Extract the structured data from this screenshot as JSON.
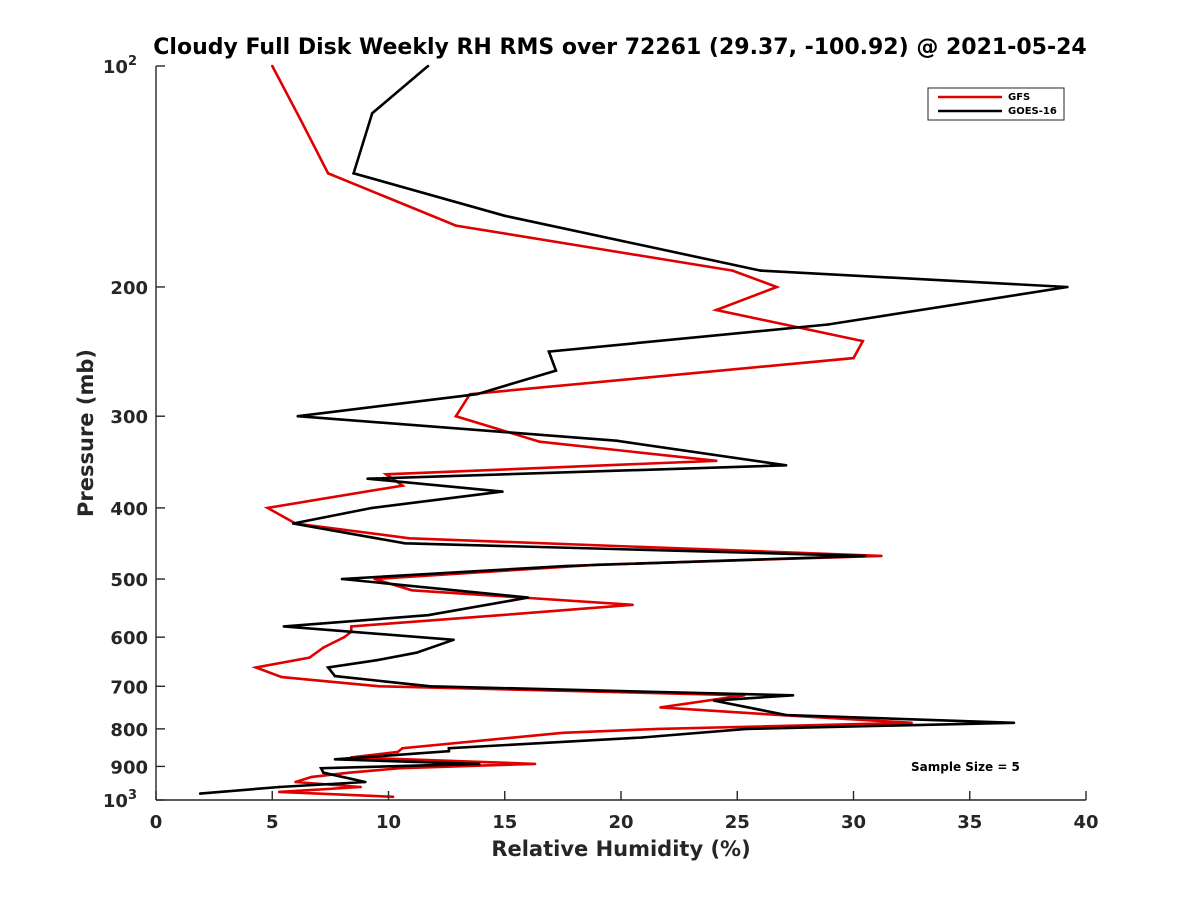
{
  "chart_data": {
    "type": "line",
    "title": "Cloudy Full Disk Weekly RH RMS over 72261 (29.37, -100.92) @ 2021-05-24",
    "xlabel": "Relative Humidity (%)",
    "ylabel": "Pressure (mb)",
    "xlim": [
      0,
      40
    ],
    "ylim": [
      100,
      1000
    ],
    "y_scale": "log",
    "y_reversed": true,
    "x_ticks": [
      "0",
      "5",
      "10",
      "15",
      "20",
      "25",
      "30",
      "35",
      "40"
    ],
    "y_ticks": [
      {
        "value": 100,
        "base": "10",
        "exp": "2"
      },
      {
        "value": 200,
        "label": "200"
      },
      {
        "value": 300,
        "label": "300"
      },
      {
        "value": 400,
        "label": "400"
      },
      {
        "value": 500,
        "label": "500"
      },
      {
        "value": 600,
        "label": "600"
      },
      {
        "value": 700,
        "label": "700"
      },
      {
        "value": 800,
        "label": "800"
      },
      {
        "value": 900,
        "label": "900"
      },
      {
        "value": 1000,
        "base": "10",
        "exp": "3"
      }
    ],
    "grid": false,
    "legend_position": "top-right",
    "annotation": "Sample Size = 5",
    "series": [
      {
        "name": "GFS",
        "color": "#e00000",
        "points": [
          [
            5.0,
            100
          ],
          [
            6.2,
            118
          ],
          [
            7.4,
            140
          ],
          [
            12.9,
            165
          ],
          [
            24.8,
            190
          ],
          [
            26.7,
            200
          ],
          [
            24.1,
            215
          ],
          [
            30.4,
            237
          ],
          [
            30.0,
            250
          ],
          [
            13.5,
            280
          ],
          [
            12.9,
            300
          ],
          [
            16.5,
            325
          ],
          [
            24.1,
            345
          ],
          [
            9.9,
            360
          ],
          [
            10.6,
            373
          ],
          [
            4.8,
            400
          ],
          [
            6.0,
            420
          ],
          [
            10.9,
            440
          ],
          [
            31.2,
            465
          ],
          [
            19.0,
            478
          ],
          [
            9.4,
            500
          ],
          [
            11.0,
            518
          ],
          [
            20.5,
            542
          ],
          [
            14.8,
            560
          ],
          [
            8.4,
            580
          ],
          [
            8.4,
            590
          ],
          [
            8.1,
            600
          ],
          [
            7.2,
            620
          ],
          [
            6.6,
            640
          ],
          [
            4.3,
            660
          ],
          [
            5.4,
            680
          ],
          [
            9.6,
            700
          ],
          [
            25.3,
            720
          ],
          [
            21.7,
            748
          ],
          [
            26.0,
            763
          ],
          [
            32.5,
            785
          ],
          [
            21.6,
            800
          ],
          [
            17.5,
            810
          ],
          [
            10.6,
            850
          ],
          [
            10.4,
            860
          ],
          [
            8.4,
            875
          ],
          [
            16.3,
            893
          ],
          [
            10.5,
            905
          ],
          [
            8.3,
            918
          ],
          [
            6.7,
            930
          ],
          [
            6.0,
            945
          ],
          [
            8.8,
            960
          ],
          [
            5.3,
            975
          ],
          [
            10.2,
            990
          ]
        ]
      },
      {
        "name": "GOES-16",
        "color": "#000000",
        "points": [
          [
            11.7,
            100
          ],
          [
            9.3,
            116
          ],
          [
            8.5,
            140
          ],
          [
            15.0,
            160
          ],
          [
            26.0,
            190
          ],
          [
            39.2,
            200
          ],
          [
            28.9,
            225
          ],
          [
            16.9,
            245
          ],
          [
            17.2,
            260
          ],
          [
            13.8,
            280
          ],
          [
            6.1,
            300
          ],
          [
            19.8,
            324
          ],
          [
            27.1,
            350
          ],
          [
            9.1,
            365
          ],
          [
            14.9,
            380
          ],
          [
            9.3,
            400
          ],
          [
            5.9,
            420
          ],
          [
            10.7,
            447
          ],
          [
            30.5,
            465
          ],
          [
            17.6,
            480
          ],
          [
            8.0,
            500
          ],
          [
            16.0,
            530
          ],
          [
            11.7,
            560
          ],
          [
            5.5,
            580
          ],
          [
            12.8,
            605
          ],
          [
            11.2,
            630
          ],
          [
            9.5,
            645
          ],
          [
            7.4,
            660
          ],
          [
            7.7,
            678
          ],
          [
            11.8,
            700
          ],
          [
            27.4,
            720
          ],
          [
            24.0,
            732
          ],
          [
            27.1,
            766
          ],
          [
            36.9,
            785
          ],
          [
            25.4,
            800
          ],
          [
            20.9,
            822
          ],
          [
            12.6,
            850
          ],
          [
            12.6,
            858
          ],
          [
            7.7,
            880
          ],
          [
            13.9,
            893
          ],
          [
            7.1,
            905
          ],
          [
            7.2,
            918
          ],
          [
            9.0,
            945
          ],
          [
            5.3,
            960
          ],
          [
            1.9,
            980
          ]
        ]
      }
    ]
  }
}
